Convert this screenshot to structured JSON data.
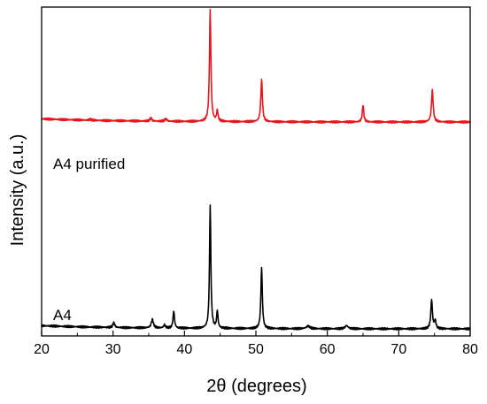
{
  "chart_data": {
    "type": "line",
    "title": "",
    "xlabel": "2θ (degrees)",
    "ylabel": "Intensity (a.u.)",
    "xlim": [
      20,
      80
    ],
    "x_ticks": [
      20,
      30,
      40,
      50,
      60,
      70,
      80
    ],
    "y_ticks_shown": false,
    "grid": false,
    "legend": "none",
    "series": [
      {
        "name": "A4 purified",
        "color": "#e8151b",
        "baseline": 0.78,
        "peaks": [
          {
            "x": 26.8,
            "h": 0.004,
            "w": 0.15
          },
          {
            "x": 35.3,
            "h": 0.012,
            "w": 0.15
          },
          {
            "x": 37.4,
            "h": 0.01,
            "w": 0.15
          },
          {
            "x": 43.6,
            "h": 0.42,
            "w": 0.12
          },
          {
            "x": 44.6,
            "h": 0.04,
            "w": 0.12
          },
          {
            "x": 50.8,
            "h": 0.16,
            "w": 0.13
          },
          {
            "x": 65.0,
            "h": 0.065,
            "w": 0.12
          },
          {
            "x": 74.7,
            "h": 0.12,
            "w": 0.14
          }
        ]
      },
      {
        "name": "A4",
        "color": "#000000",
        "baseline": 0.0,
        "peaks": [
          {
            "x": 30.1,
            "h": 0.018,
            "w": 0.15
          },
          {
            "x": 35.5,
            "h": 0.032,
            "w": 0.18
          },
          {
            "x": 37.2,
            "h": 0.012,
            "w": 0.15
          },
          {
            "x": 38.5,
            "h": 0.065,
            "w": 0.12
          },
          {
            "x": 43.6,
            "h": 0.465,
            "w": 0.11
          },
          {
            "x": 44.6,
            "h": 0.065,
            "w": 0.11
          },
          {
            "x": 50.8,
            "h": 0.23,
            "w": 0.12
          },
          {
            "x": 57.3,
            "h": 0.01,
            "w": 0.3
          },
          {
            "x": 62.7,
            "h": 0.012,
            "w": 0.25
          },
          {
            "x": 74.6,
            "h": 0.11,
            "w": 0.13
          },
          {
            "x": 75.1,
            "h": 0.03,
            "w": 0.13
          }
        ]
      }
    ]
  }
}
